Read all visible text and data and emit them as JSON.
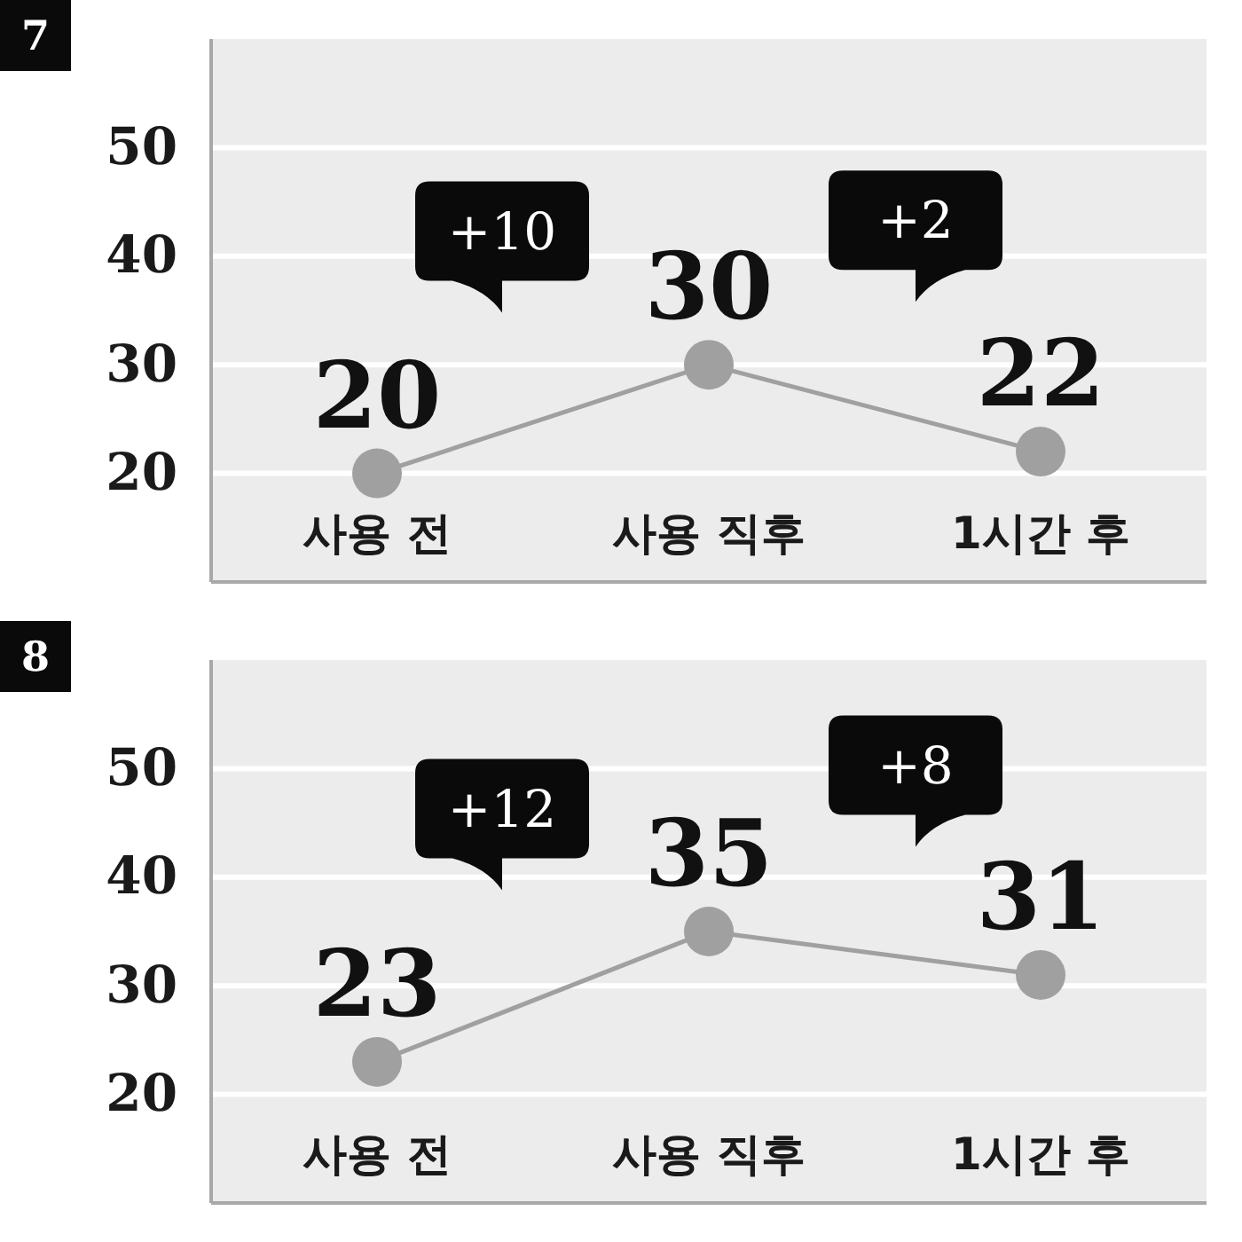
{
  "chart_data": [
    {
      "type": "line",
      "title": "7",
      "categories": [
        "사용 전",
        "사용 직후",
        "1시간 후"
      ],
      "values": [
        20,
        30,
        22
      ],
      "color": "#a0a0a0",
      "ylim": [
        10,
        60
      ],
      "yticks": [
        20,
        30,
        40,
        50
      ],
      "grid": "y",
      "marker": "circle",
      "line_style": "solid",
      "data_labels": true,
      "annotations": [
        "+10",
        "+2"
      ]
    },
    {
      "type": "line",
      "title": "8",
      "categories": [
        "사용 전",
        "사용 직후",
        "1시간 후"
      ],
      "values": [
        23,
        35,
        31
      ],
      "color": "#a0a0a0",
      "ylim": [
        10,
        60
      ],
      "yticks": [
        20,
        30,
        40,
        50
      ],
      "grid": "y",
      "marker": "circle",
      "line_style": "solid",
      "data_labels": true,
      "annotations": [
        "+12",
        "+8"
      ]
    }
  ]
}
